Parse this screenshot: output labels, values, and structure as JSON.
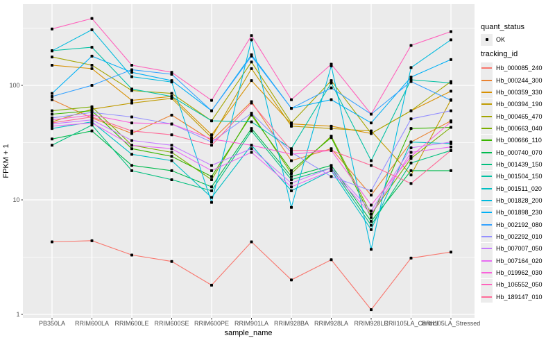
{
  "legend": {
    "quant_status": {
      "title": "quant_status",
      "items": [
        {
          "label": "OK",
          "marker": "point-icon",
          "color": "#000000"
        }
      ]
    },
    "tracking_id": {
      "title": "tracking_id"
    }
  },
  "chart_data": {
    "type": "line",
    "title": "",
    "xlabel": "sample_name",
    "ylabel": "FPKM + 1",
    "y_scale": "log10",
    "ylim": [
      1,
      500
    ],
    "y_major_ticks": [
      100,
      10,
      1
    ],
    "y_minor_ticks": [
      316.2,
      31.62,
      3.162
    ],
    "grid": true,
    "legend_position": "right",
    "panel_bg": "#EBEBEB",
    "grid_color": "#FFFFFF",
    "point_color": "#000000",
    "tick_label_color": "#4D4D4D",
    "quant_status_of_all_points": "OK",
    "categories": [
      "PB350LA",
      "RRIM600LA",
      "RRIM600LE",
      "RRIM600SE",
      "RRIM600PE",
      "RRIM901LA",
      "RRIM928BA",
      "RRIM928LA",
      "RRIM928LE",
      "RRII105LA_Control",
      "RRII105LA_Stressed"
    ],
    "series": [
      {
        "name": "Hb_000085_240",
        "color": "#F8766D",
        "values": [
          4.3,
          4.4,
          3.3,
          2.9,
          1.8,
          4.3,
          2.0,
          3.0,
          1.1,
          3.1,
          3.5
        ]
      },
      {
        "name": "Hb_000244_300",
        "color": "#EA8331",
        "values": [
          75,
          52,
          38,
          55,
          33,
          72,
          22,
          28,
          11,
          32,
          49
        ]
      },
      {
        "name": "Hb_000359_330",
        "color": "#D89000",
        "values": [
          150,
          140,
          74,
          80,
          37,
          110,
          46,
          44,
          38,
          60,
          89
        ]
      },
      {
        "name": "Hb_000394_190",
        "color": "#C09B00",
        "values": [
          48,
          62,
          70,
          77,
          35,
          140,
          44,
          42,
          40,
          16.5,
          75
        ]
      },
      {
        "name": "Hb_000465_470",
        "color": "#A3A500",
        "values": [
          177,
          150,
          90,
          85,
          49,
          160,
          47,
          110,
          38,
          60,
          108
        ]
      },
      {
        "name": "Hb_000663_040",
        "color": "#7CAE00",
        "values": [
          60,
          65,
          30,
          26,
          15,
          57,
          17,
          36,
          7.5,
          23,
          43
        ]
      },
      {
        "name": "Hb_000666_110",
        "color": "#39B600",
        "values": [
          56,
          60,
          28,
          24,
          16,
          55,
          18,
          35,
          7.0,
          42,
          43
        ]
      },
      {
        "name": "Hb_000740_070",
        "color": "#00BB4E",
        "values": [
          34,
          40,
          20,
          18,
          13,
          42,
          16,
          20,
          6.5,
          18,
          18
        ]
      },
      {
        "name": "Hb_001439_150",
        "color": "#00BF7D",
        "values": [
          30,
          45,
          18,
          15,
          12,
          40,
          15,
          19,
          6.0,
          21,
          27
        ]
      },
      {
        "name": "Hb_001504_150",
        "color": "#00C1A3",
        "values": [
          201,
          215,
          93,
          80,
          49,
          48,
          28,
          105,
          22,
          112,
          105
        ]
      },
      {
        "name": "Hb_001511_020",
        "color": "#00BFC4",
        "values": [
          42,
          48,
          25,
          22,
          10.5,
          30,
          12,
          18,
          5.5,
          32,
          31
        ]
      },
      {
        "name": "Hb_001828_200",
        "color": "#00BADE",
        "values": [
          200,
          306,
          119,
          107,
          9.5,
          250,
          8.6,
          148,
          3.7,
          143,
          250
        ]
      },
      {
        "name": "Hb_001898_230",
        "color": "#00B0F6",
        "values": [
          85,
          180,
          130,
          110,
          60,
          185,
          63,
          75,
          47,
          118,
          168
        ]
      },
      {
        "name": "Hb_002192_080",
        "color": "#35A2FF",
        "values": [
          80,
          100,
          137,
          125,
          60,
          180,
          63,
          95,
          56,
          108,
          74
        ]
      },
      {
        "name": "Hb_002292_010",
        "color": "#9590FF",
        "values": [
          52,
          58,
          53,
          46,
          32,
          57,
          26,
          16,
          12,
          51,
          60
        ]
      },
      {
        "name": "Hb_007007_050",
        "color": "#C77CFF",
        "values": [
          46,
          50,
          33,
          30,
          20,
          28,
          14,
          19,
          8.0,
          28.5,
          32
        ]
      },
      {
        "name": "Hb_007164_020",
        "color": "#E76BF3",
        "values": [
          44,
          47,
          30,
          28,
          18,
          26,
          13,
          18,
          7.5,
          26,
          29
        ]
      },
      {
        "name": "Hb_019962_030",
        "color": "#FA62DB",
        "values": [
          50,
          55,
          47,
          46,
          34,
          30,
          25,
          27,
          9.0,
          24,
          48
        ]
      },
      {
        "name": "Hb_106552_050",
        "color": "#FF62BC",
        "values": [
          311,
          384,
          150,
          130,
          74,
          272,
          75,
          153,
          56,
          223,
          295
        ]
      },
      {
        "name": "Hb_189147_010",
        "color": "#FF6A98",
        "values": [
          47,
          53,
          40,
          37,
          30,
          70,
          27,
          27,
          20,
          13.9,
          27
        ]
      }
    ]
  }
}
